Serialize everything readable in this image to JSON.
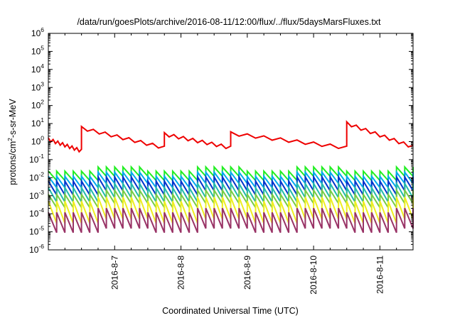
{
  "chart_data": {
    "type": "line",
    "title": "/data/run/goesPlots/archive/2016-08-11/12:00/flux/../flux/5daysMarsFluxes.txt",
    "xlabel": "Coordinated Universal Time (UTC)",
    "ylabel": {
      "pre": "protons/cm",
      "sup": "2",
      "post": "-s-sr-MeV"
    },
    "y_scale": "log",
    "ylim": [
      1e-06,
      1000000.0
    ],
    "y_ticks": [
      {
        "base": "10",
        "exp": "-6"
      },
      {
        "base": "10",
        "exp": "-5"
      },
      {
        "base": "10",
        "exp": "-4"
      },
      {
        "base": "10",
        "exp": "-3"
      },
      {
        "base": "10",
        "exp": "-2"
      },
      {
        "base": "10",
        "exp": "-1"
      },
      {
        "base": "10",
        "exp": "0"
      },
      {
        "base": "10",
        "exp": "1"
      },
      {
        "base": "10",
        "exp": "2"
      },
      {
        "base": "10",
        "exp": "3"
      },
      {
        "base": "10",
        "exp": "4"
      },
      {
        "base": "10",
        "exp": "5"
      },
      {
        "base": "10",
        "exp": "6"
      }
    ],
    "xlim": [
      "2016-08-06T00:00",
      "2016-08-11T12:00"
    ],
    "x_ticks": [
      "2016-8-7",
      "2016-8-8",
      "2016-8-9",
      "2016-8-10",
      "2016-8-11"
    ],
    "grid": false,
    "legend": "none",
    "series": [
      {
        "color": "#ee0000",
        "description": "sawtooth profile, jumps near Aug 6 12:00, Aug 7 18:00, Aug 8 18:00, Aug 10 12:00",
        "segments": [
          {
            "start": "2016-08-06T00:00",
            "end": "2016-08-06T12:00",
            "from": 1.3,
            "to": 0.3
          },
          {
            "start": "2016-08-06T12:00",
            "end": "2016-08-07T18:00",
            "from": 5.5,
            "to": 0.45
          },
          {
            "start": "2016-08-07T18:00",
            "end": "2016-08-08T18:00",
            "from": 2.5,
            "to": 0.45
          },
          {
            "start": "2016-08-08T18:00",
            "end": "2016-08-10T12:00",
            "from": 2.8,
            "to": 0.45
          },
          {
            "start": "2016-08-10T12:00",
            "end": "2016-08-11T12:00",
            "from": 10,
            "to": 0.5
          }
        ]
      },
      {
        "color": "#22ee22",
        "description": "periodic sawtooth",
        "peak": 0.023,
        "trough": 0.007,
        "step_day": 0.75,
        "step_factor": 1.7
      },
      {
        "color": "#00aaee",
        "description": "periodic sawtooth",
        "peak": 0.012,
        "trough": 0.0028,
        "step_day": 0.75,
        "step_factor": 1.7
      },
      {
        "color": "#0033cc",
        "description": "periodic sawtooth",
        "peak": 0.0065,
        "trough": 0.0011,
        "step_day": 0.75,
        "step_factor": 1.7
      },
      {
        "color": "#22bbaa",
        "description": "periodic sawtooth",
        "peak": 0.0028,
        "trough": 0.00045,
        "step_day": 0.75,
        "step_factor": 1.7
      },
      {
        "color": "#77cc44",
        "description": "periodic sawtooth",
        "peak": 0.0012,
        "trough": 0.00022,
        "step_day": 0.75,
        "step_factor": 1.7
      },
      {
        "color": "#eeee22",
        "description": "periodic sawtooth",
        "peak": 0.0005,
        "trough": 3e-05,
        "step_day": 0.75,
        "step_factor": 1.7
      },
      {
        "color": "#993366",
        "description": "periodic sawtooth",
        "peak": 0.00012,
        "trough": 9e-06,
        "step_day": 0.75,
        "step_factor": 1.7
      }
    ]
  }
}
